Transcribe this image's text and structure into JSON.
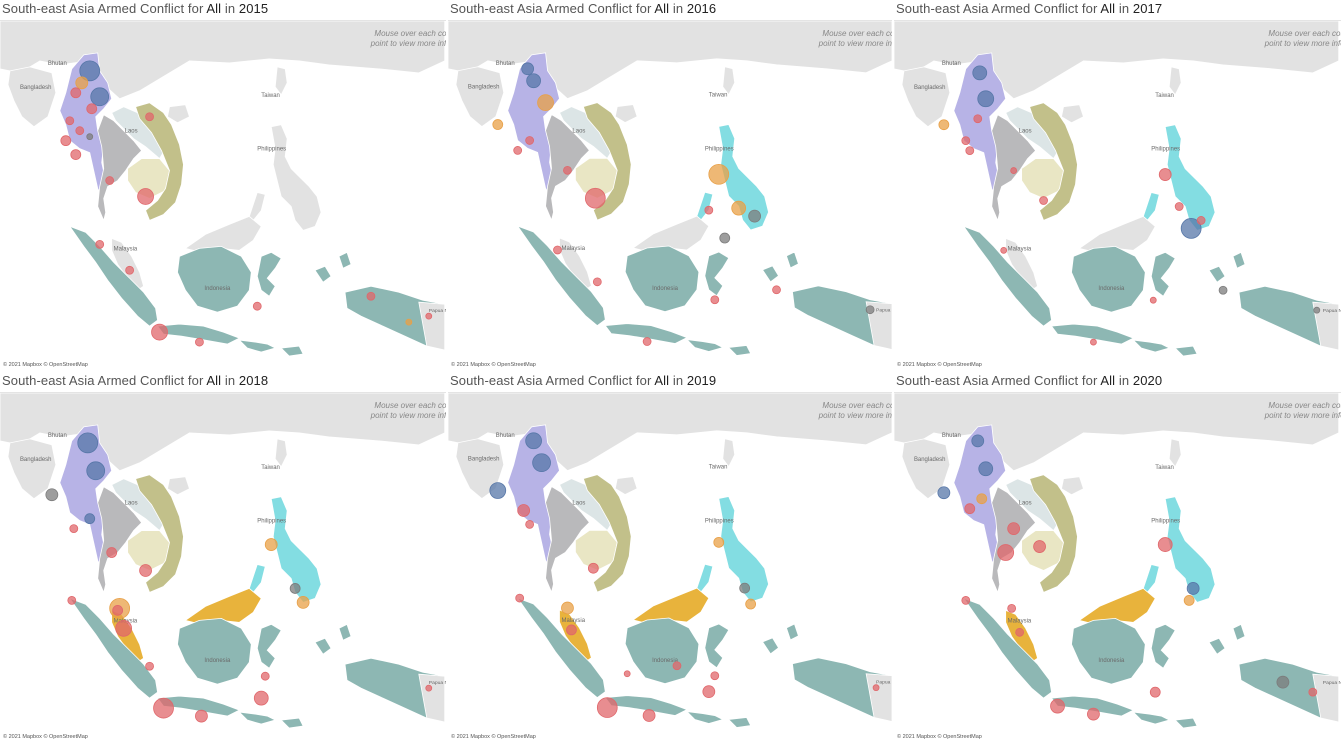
{
  "title_parts": {
    "prefix": "South-east Asia Armed Conflict for ",
    "category": "All",
    "connector": " in "
  },
  "hint_lines": [
    "Mouse over each country or",
    "point to view more information"
  ],
  "credit": "© 2021 Mapbox © OpenStreetMap",
  "map_labels": {
    "bhutan": "Bhutan",
    "bangladesh": "Bangladesh",
    "taiwan": "Taiwan",
    "laos": "Laos",
    "philippines": "Philippines",
    "malaysia": "Malaysia",
    "indonesia": "Indonesia",
    "papua": "Papua New Guinea"
  },
  "colors": {
    "myanmar": "#b7b3e6",
    "laos": "#dce5e6",
    "thailand": "#b9b9bb",
    "cambodia": "#e9e6c4",
    "vietnam": "#c2c08a",
    "philippines": "#83dde2",
    "malaysia": "#e8b33c",
    "indonesia": "#8db7b3",
    "land": "#e2e2e2",
    "sea": "#ffffff",
    "marker_red": "#e0676b",
    "marker_blue": "#5777a8",
    "marker_orange": "#e8a047",
    "marker_gray": "#7c7c7c"
  },
  "years": [
    "2015",
    "2016",
    "2017",
    "2018",
    "2019",
    "2020"
  ],
  "panels": [
    {
      "year": "2015",
      "highlight": {
        "philippines": false,
        "malaysia": false
      }
    },
    {
      "year": "2016",
      "highlight": {
        "philippines": true,
        "malaysia": false
      }
    },
    {
      "year": "2017",
      "highlight": {
        "philippines": true,
        "malaysia": false
      }
    },
    {
      "year": "2018",
      "highlight": {
        "philippines": true,
        "malaysia": true
      }
    },
    {
      "year": "2019",
      "highlight": {
        "philippines": true,
        "malaysia": true
      }
    },
    {
      "year": "2020",
      "highlight": {
        "philippines": true,
        "malaysia": true
      }
    }
  ]
}
